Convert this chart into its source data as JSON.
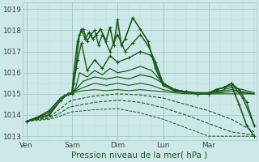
{
  "title": "Pression niveau de la mer( hPa )",
  "bg_color": "#cce8e8",
  "grid_color_major": "#a8c8c8",
  "grid_color_minor": "#bcd8d8",
  "line_color": "#1a5c1a",
  "ylim_min": 1012.8,
  "ylim_max": 1019.3,
  "yticks": [
    1013,
    1014,
    1015,
    1016,
    1017,
    1018,
    1019
  ],
  "day_labels": [
    "Ven",
    "Sam",
    "Dim",
    "Lun",
    "Mar"
  ],
  "day_positions": [
    0,
    24,
    48,
    72,
    96
  ],
  "xlim": [
    -2,
    121
  ],
  "title_color": "#1a5c1a",
  "title_fontsize": 7.5,
  "tick_fontsize": 6.5,
  "lines": [
    {
      "hours": [
        0,
        6,
        12,
        18,
        22,
        24,
        25,
        27,
        29,
        31,
        33,
        35,
        37,
        39,
        42,
        44,
        46,
        48,
        50,
        52,
        56,
        60,
        64,
        68,
        72,
        78,
        84,
        90,
        96,
        100,
        104,
        108,
        112,
        116,
        120
      ],
      "vals": [
        1013.7,
        1013.9,
        1014.2,
        1014.8,
        1015.0,
        1015.05,
        1016.0,
        1017.5,
        1018.05,
        1017.6,
        1017.9,
        1017.6,
        1017.8,
        1018.05,
        1017.5,
        1018.15,
        1017.3,
        1018.5,
        1017.3,
        1017.6,
        1018.6,
        1018.05,
        1017.5,
        1016.2,
        1015.4,
        1015.15,
        1015.1,
        1015.05,
        1015.05,
        1015.2,
        1015.3,
        1015.4,
        1014.5,
        1013.5,
        1013.0
      ],
      "dashed": false,
      "markers": true,
      "lw": 1.2
    },
    {
      "hours": [
        0,
        12,
        20,
        24,
        26,
        28,
        30,
        32,
        34,
        36,
        38,
        40,
        44,
        48,
        52,
        56,
        60,
        64,
        68,
        72,
        78,
        84,
        90,
        96,
        100,
        104,
        108,
        114,
        120
      ],
      "vals": [
        1013.7,
        1014.1,
        1014.9,
        1015.0,
        1016.2,
        1017.8,
        1018.05,
        1017.5,
        1017.8,
        1018.0,
        1017.3,
        1017.8,
        1017.0,
        1017.8,
        1017.0,
        1017.4,
        1017.8,
        1017.3,
        1016.5,
        1015.5,
        1015.2,
        1015.1,
        1015.0,
        1015.0,
        1015.2,
        1015.3,
        1015.5,
        1014.8,
        1013.5
      ],
      "dashed": false,
      "markers": true,
      "lw": 1.0
    },
    {
      "hours": [
        0,
        12,
        18,
        22,
        24,
        25,
        27,
        29,
        32,
        36,
        40,
        44,
        48,
        54,
        60,
        66,
        72,
        78,
        84,
        90,
        96,
        100,
        104,
        108,
        112,
        116,
        120
      ],
      "vals": [
        1013.7,
        1014.0,
        1014.7,
        1015.0,
        1015.05,
        1015.5,
        1016.6,
        1017.4,
        1016.1,
        1016.6,
        1016.2,
        1016.8,
        1016.5,
        1016.7,
        1017.0,
        1016.8,
        1015.5,
        1015.2,
        1015.1,
        1015.0,
        1015.0,
        1015.2,
        1015.3,
        1015.5,
        1015.2,
        1014.6,
        1013.5
      ],
      "dashed": false,
      "markers": true,
      "lw": 1.0
    },
    {
      "hours": [
        0,
        12,
        18,
        22,
        24,
        26,
        28,
        32,
        36,
        40,
        44,
        48,
        54,
        60,
        66,
        72,
        78,
        84,
        90,
        96,
        102,
        108,
        114,
        120
      ],
      "vals": [
        1013.7,
        1014.0,
        1014.7,
        1015.0,
        1015.05,
        1015.3,
        1016.0,
        1015.8,
        1016.1,
        1015.9,
        1016.2,
        1016.0,
        1016.1,
        1016.3,
        1016.1,
        1015.5,
        1015.2,
        1015.1,
        1015.0,
        1015.05,
        1015.15,
        1015.3,
        1015.2,
        1015.05
      ],
      "dashed": false,
      "markers": false,
      "lw": 0.9
    },
    {
      "hours": [
        0,
        12,
        18,
        22,
        24,
        26,
        30,
        36,
        42,
        48,
        54,
        60,
        66,
        72,
        78,
        84,
        90,
        96,
        102,
        108,
        114,
        120
      ],
      "vals": [
        1013.7,
        1014.0,
        1014.7,
        1015.0,
        1015.05,
        1015.2,
        1015.6,
        1015.8,
        1015.7,
        1015.8,
        1015.7,
        1015.9,
        1015.8,
        1015.5,
        1015.2,
        1015.1,
        1015.0,
        1015.05,
        1015.1,
        1015.2,
        1015.1,
        1015.0
      ],
      "dashed": false,
      "markers": false,
      "lw": 0.9
    },
    {
      "hours": [
        0,
        12,
        18,
        22,
        24,
        26,
        30,
        36,
        42,
        48,
        54,
        60,
        66,
        72,
        78,
        84,
        90,
        96,
        102,
        108,
        114,
        120
      ],
      "vals": [
        1013.7,
        1014.0,
        1014.7,
        1015.0,
        1015.05,
        1015.15,
        1015.3,
        1015.5,
        1015.4,
        1015.5,
        1015.4,
        1015.5,
        1015.4,
        1015.2,
        1015.1,
        1015.05,
        1015.0,
        1015.02,
        1015.05,
        1015.1,
        1015.05,
        1015.0
      ],
      "dashed": false,
      "markers": false,
      "lw": 0.8
    },
    {
      "hours": [
        0,
        12,
        18,
        22,
        24,
        30,
        36,
        42,
        48,
        54,
        60,
        66,
        72,
        78,
        84,
        90,
        96,
        102,
        108,
        114,
        120
      ],
      "vals": [
        1013.7,
        1014.0,
        1014.7,
        1015.0,
        1015.05,
        1015.15,
        1015.2,
        1015.15,
        1015.2,
        1015.15,
        1015.2,
        1015.15,
        1015.1,
        1015.05,
        1015.0,
        1015.0,
        1015.0,
        1015.0,
        1015.0,
        1015.0,
        1015.0
      ],
      "dashed": false,
      "markers": false,
      "lw": 0.8
    },
    {
      "hours": [
        0,
        12,
        18,
        22,
        24,
        36,
        48,
        60,
        72,
        84,
        96,
        108,
        120
      ],
      "vals": [
        1013.7,
        1013.9,
        1014.3,
        1014.6,
        1014.7,
        1014.9,
        1015.0,
        1014.95,
        1014.8,
        1014.5,
        1014.2,
        1013.8,
        1013.2
      ],
      "dashed": true,
      "markers": false,
      "lw": 0.8
    },
    {
      "hours": [
        0,
        12,
        18,
        22,
        24,
        36,
        48,
        60,
        72,
        84,
        96,
        108,
        120
      ],
      "vals": [
        1013.7,
        1013.85,
        1014.1,
        1014.35,
        1014.4,
        1014.6,
        1014.7,
        1014.6,
        1014.35,
        1014.0,
        1013.6,
        1013.2,
        1013.05
      ],
      "dashed": true,
      "markers": false,
      "lw": 0.8
    },
    {
      "hours": [
        0,
        12,
        18,
        22,
        24,
        36,
        48,
        60,
        72,
        84,
        96,
        108,
        120
      ],
      "vals": [
        1013.7,
        1013.8,
        1013.95,
        1014.1,
        1014.15,
        1014.25,
        1014.3,
        1014.1,
        1013.8,
        1013.4,
        1013.0,
        1013.0,
        1013.0
      ],
      "dashed": true,
      "markers": false,
      "lw": 0.7
    }
  ]
}
